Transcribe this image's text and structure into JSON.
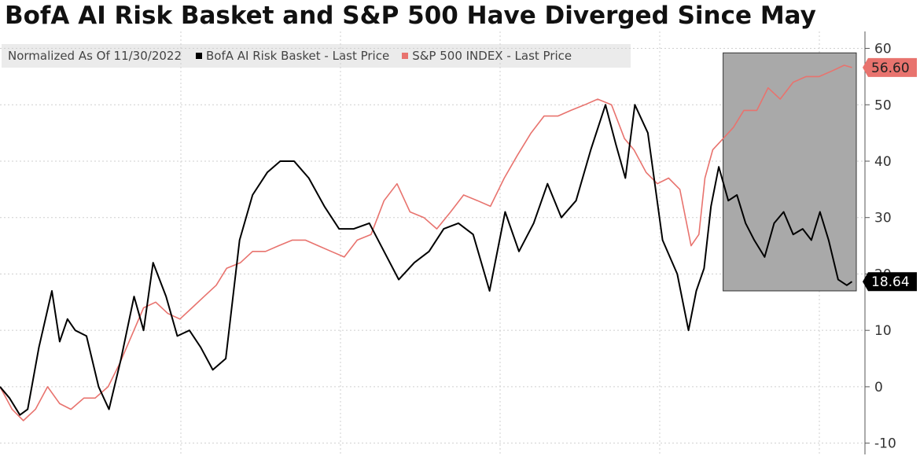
{
  "title": "BofA AI Risk Basket and S&P 500 Have Diverged Since May",
  "legend": {
    "normalization_note": "Normalized As Of 11/30/2022",
    "items": [
      {
        "label": "BofA AI Risk Basket - Last Price",
        "color": "#000000"
      },
      {
        "label": "S&P 500 INDEX - Last Price",
        "color": "#e8736e"
      }
    ]
  },
  "colors": {
    "ai_basket": "#000000",
    "sp500": "#e8736e",
    "highlight_fill": "#a9a9a9",
    "grid": "#cfcfcf"
  },
  "chart_data": {
    "type": "line",
    "title": "BofA AI Risk Basket and S&P 500 Have Diverged Since May",
    "xlabel": "",
    "ylabel": "",
    "ylim": [
      -12,
      63
    ],
    "yticks": [
      -10,
      0,
      10,
      20,
      30,
      40,
      50,
      60
    ],
    "grid": true,
    "legend_position": "top-left",
    "y_axis_side": "right",
    "highlight_region": {
      "x_start": 0.836,
      "x_end": 0.99,
      "description_shown": false
    },
    "last_value_labels": [
      {
        "series": "S&P 500 INDEX - Last Price",
        "value": "56.60",
        "color": "#e8736e"
      },
      {
        "series": "BofA AI Risk Basket - Last Price",
        "value": "18.64",
        "color": "#000000"
      }
    ],
    "series": [
      {
        "name": "BofA AI Risk Basket - Last Price",
        "color": "#000000",
        "x": [
          0,
          0.011,
          0.023,
          0.032,
          0.045,
          0.06,
          0.069,
          0.078,
          0.087,
          0.1,
          0.114,
          0.126,
          0.14,
          0.155,
          0.166,
          0.177,
          0.192,
          0.205,
          0.219,
          0.232,
          0.246,
          0.261,
          0.277,
          0.292,
          0.309,
          0.324,
          0.34,
          0.357,
          0.375,
          0.392,
          0.409,
          0.427,
          0.444,
          0.461,
          0.479,
          0.496,
          0.513,
          0.53,
          0.547,
          0.566,
          0.584,
          0.6,
          0.617,
          0.633,
          0.649,
          0.666,
          0.683,
          0.7,
          0.712,
          0.723,
          0.734,
          0.749,
          0.766,
          0.783,
          0.796,
          0.805,
          0.814,
          0.822,
          0.831,
          0.842,
          0.852,
          0.862,
          0.872,
          0.884,
          0.895,
          0.906,
          0.917,
          0.928,
          0.938,
          0.948,
          0.958,
          0.969,
          0.979,
          0.985
        ],
        "values": [
          0,
          -2,
          -5,
          -4,
          7,
          17,
          8,
          12,
          10,
          9,
          0,
          -4,
          5,
          16,
          10,
          22,
          16,
          9,
          10,
          7,
          3,
          5,
          26,
          34,
          38,
          40,
          40,
          37,
          32,
          28,
          28,
          29,
          24,
          19,
          22,
          24,
          28,
          29,
          27,
          17,
          31,
          24,
          29,
          36,
          30,
          33,
          42,
          50,
          43,
          37,
          50,
          45,
          26,
          20,
          10,
          17,
          21,
          32,
          39,
          33,
          34,
          29,
          26,
          23,
          29,
          31,
          27,
          28,
          26,
          31,
          26,
          19,
          18,
          18.64
        ]
      },
      {
        "name": "S&P 500 INDEX - Last Price",
        "color": "#e8736e",
        "x": [
          0,
          0.014,
          0.027,
          0.041,
          0.055,
          0.069,
          0.082,
          0.097,
          0.11,
          0.125,
          0.138,
          0.152,
          0.166,
          0.18,
          0.194,
          0.208,
          0.222,
          0.236,
          0.25,
          0.262,
          0.278,
          0.292,
          0.307,
          0.322,
          0.338,
          0.353,
          0.368,
          0.383,
          0.398,
          0.413,
          0.429,
          0.444,
          0.459,
          0.474,
          0.49,
          0.505,
          0.521,
          0.536,
          0.552,
          0.567,
          0.583,
          0.598,
          0.614,
          0.629,
          0.645,
          0.66,
          0.676,
          0.691,
          0.707,
          0.722,
          0.733,
          0.747,
          0.76,
          0.773,
          0.786,
          0.799,
          0.808,
          0.815,
          0.824,
          0.836,
          0.848,
          0.86,
          0.875,
          0.888,
          0.902,
          0.917,
          0.932,
          0.947,
          0.962,
          0.976,
          0.985
        ],
        "values": [
          0,
          -4,
          -6,
          -4,
          0,
          -3,
          -4,
          -2,
          -2,
          0,
          4,
          9,
          14,
          15,
          13,
          12,
          14,
          16,
          18,
          21,
          22,
          24,
          24,
          25,
          26,
          26,
          25,
          24,
          23,
          26,
          27,
          33,
          36,
          31,
          30,
          28,
          31,
          34,
          33,
          32,
          37,
          41,
          45,
          48,
          48,
          49,
          50,
          51,
          50,
          44,
          42,
          38,
          36,
          37,
          35,
          25,
          27,
          37,
          42,
          44,
          46,
          49,
          49,
          53,
          51,
          54,
          55,
          55,
          56,
          57,
          56.6
        ]
      }
    ]
  }
}
